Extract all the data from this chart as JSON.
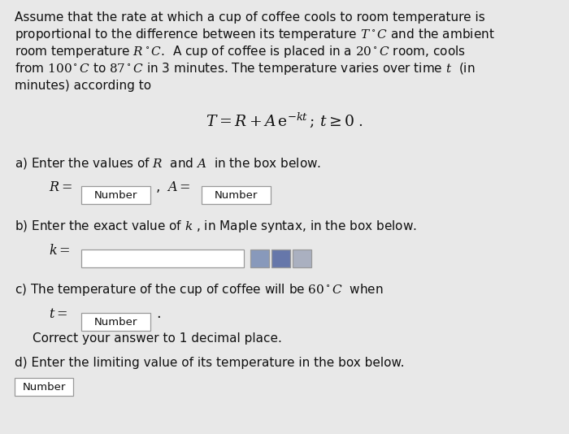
{
  "bg_color": "#e8e8e8",
  "text_color": "#111111",
  "box_color": "#ffffff",
  "box_edge_color": "#999999",
  "icon_color": "#b0b8c8",
  "line1": "Assume that the rate at which a cup of coffee cools to room temperature is",
  "line2": "proportional to the difference between its temperature $T^\\circ C$ and the ambient",
  "line3": "room temperature $R^\\circ C$.  A cup of coffee is placed in a $20^\\circ C$ room, cools",
  "line4": "from $100^\\circ C$ to $87^\\circ C$ in 3 minutes. The temperature varies over time $t$  (in",
  "line5": "minutes) according to",
  "formula": "$T = R + A\\,\\mathrm{e}^{-kt}\\,;\\,t \\geq 0\\;.$",
  "part_a_label": "a) Enter the values of $R$  and $A$  in the box below.",
  "part_a_r": "$R =$",
  "part_a_a": "$A =$",
  "comma": ",",
  "part_b_label": "b) Enter the exact value of $k$ , in Maple syntax, in the box below.",
  "part_b_k": "$k =$",
  "part_c_label": "c) The temperature of the cup of coffee will be $60^\\circ C$  when",
  "part_c_t": "$t =$",
  "part_c_dot": ".",
  "part_c_note": "Correct your answer to 1 decimal place.",
  "part_d_label": "d) Enter the limiting value of its temperature in the box below.",
  "number_label": "Number",
  "fontsize_body": 11.0,
  "fontsize_formula": 13.5,
  "fontsize_math": 11.5
}
